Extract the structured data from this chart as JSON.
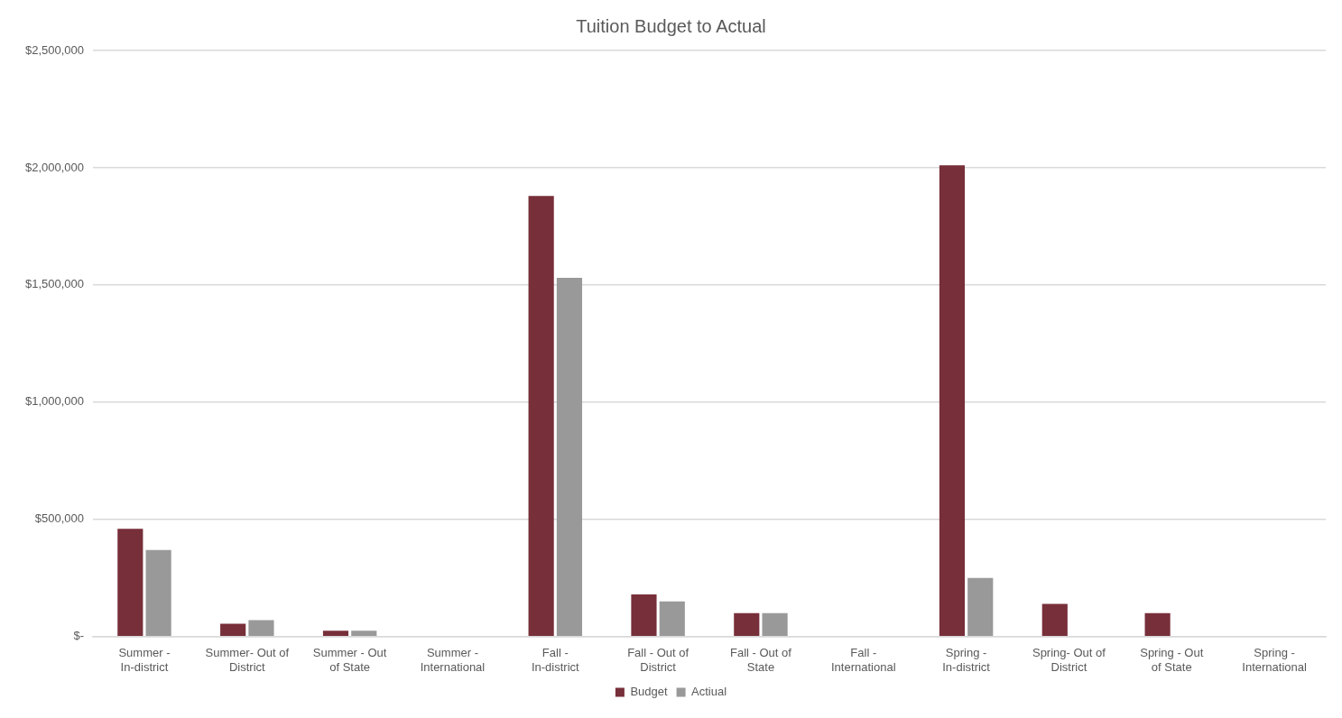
{
  "chart_data": {
    "type": "bar",
    "title": "Tuition Budget to Actual",
    "categories": [
      "Summer - In-district",
      "Summer- Out of District",
      "Summer - Out of State",
      "Summer - International",
      "Fall - In-district",
      "Fall -  Out of District",
      "Fall - Out of State",
      "Fall - International",
      "Spring - In-district",
      "Spring- Out of District",
      "Spring - Out of State",
      "Spring - International"
    ],
    "series": [
      {
        "name": "Budget",
        "color": "#772f3a",
        "values": [
          460000,
          55000,
          25000,
          0,
          1880000,
          180000,
          100000,
          0,
          2010000,
          140000,
          100000,
          0
        ]
      },
      {
        "name": "Actiual",
        "color": "#999999",
        "values": [
          370000,
          70000,
          25000,
          0,
          1530000,
          150000,
          100000,
          0,
          250000,
          0,
          0,
          0
        ]
      }
    ],
    "ylim": [
      0,
      2500000
    ],
    "yticks": [
      {
        "value": 0,
        "label": "$-"
      },
      {
        "value": 500000,
        "label": "$500,000"
      },
      {
        "value": 1000000,
        "label": "$1,000,000"
      },
      {
        "value": 1500000,
        "label": "$1,500,000"
      },
      {
        "value": 2000000,
        "label": "$2,000,000"
      },
      {
        "value": 2500000,
        "label": "$2,500,000"
      }
    ],
    "grid": "y",
    "legend": "bottom"
  }
}
